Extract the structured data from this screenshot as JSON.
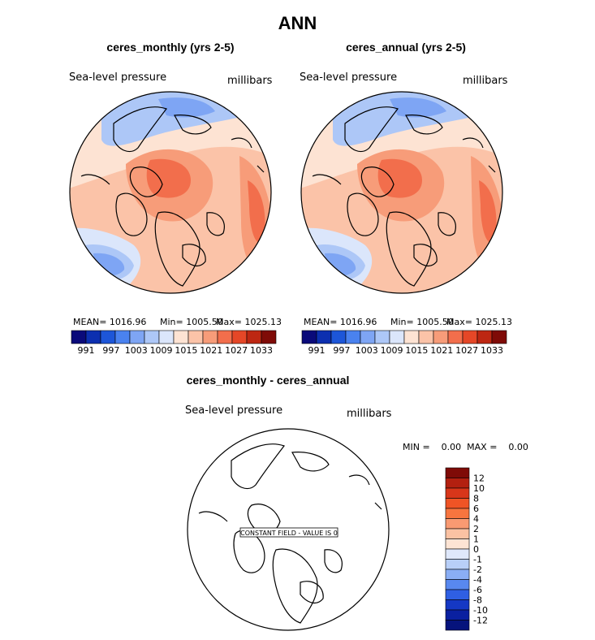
{
  "main_title": "ANN",
  "panels": [
    {
      "title": "ceres_monthly (yrs 2-5)",
      "left_label": "Sea-level pressure",
      "right_label": "millibars",
      "mean_text": "MEAN= 1016.96",
      "min_text": "Min= 1005.50",
      "max_text": "Max= 1025.13"
    },
    {
      "title": "ceres_annual (yrs 2-5)",
      "left_label": "Sea-level pressure",
      "right_label": "millibars",
      "mean_text": "MEAN= 1016.96",
      "min_text": "Min= 1005.50",
      "max_text": "Max= 1025.13"
    }
  ],
  "diff_panel": {
    "title": "ceres_monthly - ceres_annual",
    "left_label": "Sea-level pressure",
    "right_label": "millibars",
    "minmax_text": "MIN =    0.00  MAX =    0.00",
    "constant_field_text": "CONSTANT FIELD - VALUE IS 0"
  },
  "chart_data": [
    {
      "type": "heatmap",
      "title": "ceres_monthly (yrs 2-5)",
      "projection": "north-polar-stereographic",
      "variable": "Sea-level pressure",
      "units": "millibars",
      "mean": 1016.96,
      "min": 1005.5,
      "max": 1025.13,
      "colorbar": {
        "orientation": "horizontal",
        "tick_labels": [
          "991",
          "997",
          "1003",
          "1009",
          "1015",
          "1021",
          "1027",
          "1033"
        ],
        "boundaries": [
          991,
          994,
          997,
          1000,
          1003,
          1006,
          1009,
          1012,
          1015,
          1018,
          1021,
          1024,
          1027,
          1030,
          1033
        ]
      }
    },
    {
      "type": "heatmap",
      "title": "ceres_annual (yrs 2-5)",
      "projection": "north-polar-stereographic",
      "variable": "Sea-level pressure",
      "units": "millibars",
      "mean": 1016.96,
      "min": 1005.5,
      "max": 1025.13,
      "colorbar": {
        "orientation": "horizontal",
        "tick_labels": [
          "991",
          "997",
          "1003",
          "1009",
          "1015",
          "1021",
          "1027",
          "1033"
        ],
        "boundaries": [
          991,
          994,
          997,
          1000,
          1003,
          1006,
          1009,
          1012,
          1015,
          1018,
          1021,
          1024,
          1027,
          1030,
          1033
        ]
      }
    },
    {
      "type": "heatmap",
      "title": "ceres_monthly - ceres_annual",
      "projection": "north-polar-stereographic",
      "variable": "Sea-level pressure",
      "units": "millibars",
      "min": 0.0,
      "max": 0.0,
      "constant_value": 0,
      "colorbar": {
        "orientation": "vertical",
        "tick_labels": [
          "12",
          "10",
          "8",
          "6",
          "4",
          "2",
          "1",
          "0",
          "-1",
          "-2",
          "-4",
          "-6",
          "-8",
          "-10",
          "-12"
        ]
      }
    }
  ],
  "colors": {
    "abs_scale": [
      "#0a0a7a",
      "#0c2fb0",
      "#1d56d8",
      "#4a82ef",
      "#7ea5f4",
      "#adc7f7",
      "#dbe6fb",
      "#fde3d3",
      "#fbc3a8",
      "#f79c79",
      "#f26e4c",
      "#e54727",
      "#bd2712",
      "#7f0b07"
    ],
    "diff_scale": [
      "#7f0b07",
      "#b32010",
      "#d8361a",
      "#ef5425",
      "#f7753f",
      "#f99a72",
      "#fbc2a3",
      "#fde4d4",
      "#dfe8fb",
      "#b8cff8",
      "#8aaef5",
      "#5888ef",
      "#2f5fe3",
      "#1538c4",
      "#0a20a0",
      "#06137c"
    ]
  }
}
